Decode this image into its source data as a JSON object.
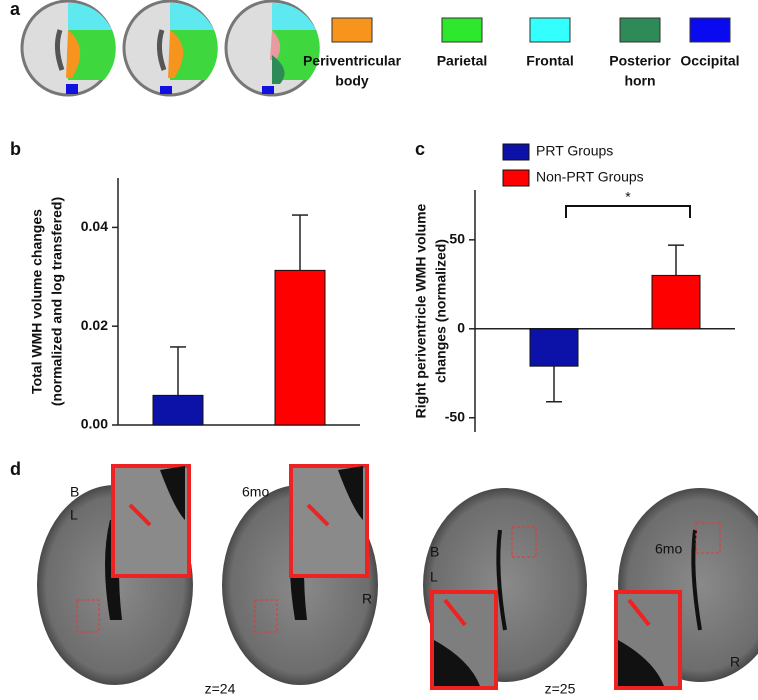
{
  "panel_labels": [
    "a",
    "b",
    "c",
    "d"
  ],
  "region_legend": [
    {
      "lines": [
        "Periventricular",
        "body"
      ],
      "color": "#f7941d"
    },
    {
      "lines": [
        "Parietal"
      ],
      "color": "#2ee82e"
    },
    {
      "lines": [
        "Frontal"
      ],
      "color": "#33ffff"
    },
    {
      "lines": [
        "Posterior",
        "horn"
      ],
      "color": "#2e8b57"
    },
    {
      "lines": [
        "Occipital"
      ],
      "color": "#0a0af0"
    }
  ],
  "chart_data": [
    {
      "type": "bar",
      "y_label": [
        "Total WMH volume changes",
        "(normalized and log transfered)"
      ],
      "ylim": [
        0,
        0.05
      ],
      "yticks": [
        {
          "value": 0,
          "label": "0.00"
        },
        0.02,
        0.04
      ],
      "series": [
        {
          "color": "#0c12a8",
          "values": [
            0.006
          ],
          "errors": [
            0.0098
          ]
        },
        {
          "color": "#ff0000",
          "values": [
            0.0313
          ],
          "errors": [
            0.0112
          ]
        }
      ]
    },
    {
      "type": "bar",
      "y_label": [
        "Right periventricle WMH volume",
        "changes (normalized)"
      ],
      "ylim": [
        -58,
        78
      ],
      "yticks": [
        -50,
        0,
        50
      ],
      "significance": "*",
      "series": [
        {
          "name": "PRT Groups",
          "color": "#0c12a8",
          "values": [
            -21
          ],
          "errors": [
            20
          ]
        },
        {
          "name": "Non-PRT Groups",
          "color": "#ff0000",
          "values": [
            30
          ],
          "errors": [
            17
          ]
        }
      ]
    }
  ],
  "mri_labels": [
    {
      "top": "B",
      "side": "L",
      "follow": "6mo",
      "corner": "R",
      "slice": "z=24"
    },
    {
      "top": "B",
      "side": "L",
      "follow": "6mo",
      "corner": "R",
      "slice": "z=25"
    }
  ]
}
